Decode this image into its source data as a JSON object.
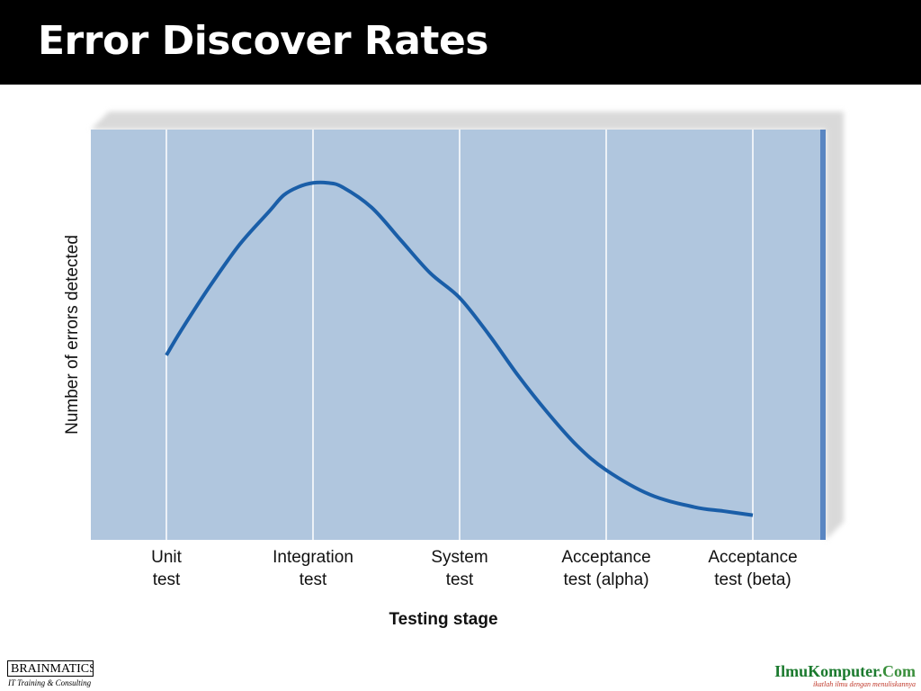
{
  "slide": {
    "title": "Error Discover Rates"
  },
  "chart_data": {
    "type": "line",
    "categories": [
      "Unit\ntest",
      "Integration\ntest",
      "System\ntest",
      "Acceptance\ntest (alpha)",
      "Acceptance\ntest (beta)"
    ],
    "xlabel": "Testing stage",
    "ylabel": "Number of errors detected",
    "ylim": [
      0,
      100
    ],
    "y_ticks_shown": false,
    "grid": "vertical",
    "colors": {
      "plot_bg": "#b0c6de",
      "gridline": "#ffffff",
      "line": "#1a5ea8",
      "frame_shadow": "#d9d9d9",
      "frame_side": "#5a86c2"
    },
    "series": [
      {
        "x": [
          0,
          0.1,
          0.3,
          0.5,
          0.7,
          0.8,
          0.9,
          1.0,
          1.1,
          1.2,
          1.4,
          1.6,
          1.8,
          2.0,
          2.2,
          2.4,
          2.6,
          2.8,
          3.0,
          3.3,
          3.6,
          3.8,
          4.0
        ],
        "values": [
          45,
          51,
          62,
          72,
          80,
          84,
          86,
          87,
          87,
          86,
          81,
          73,
          65,
          59,
          50,
          40,
          31,
          23,
          17,
          11,
          8,
          7,
          6
        ]
      }
    ]
  },
  "footer": {
    "brand_name": "BRAINMATICS",
    "brand_tagline": "IT Training & Consulting",
    "site_name": "IlmuKomputer",
    "site_suffix": ".Com",
    "site_tagline": "ikatlah ilmu dengan menuliskannya"
  }
}
